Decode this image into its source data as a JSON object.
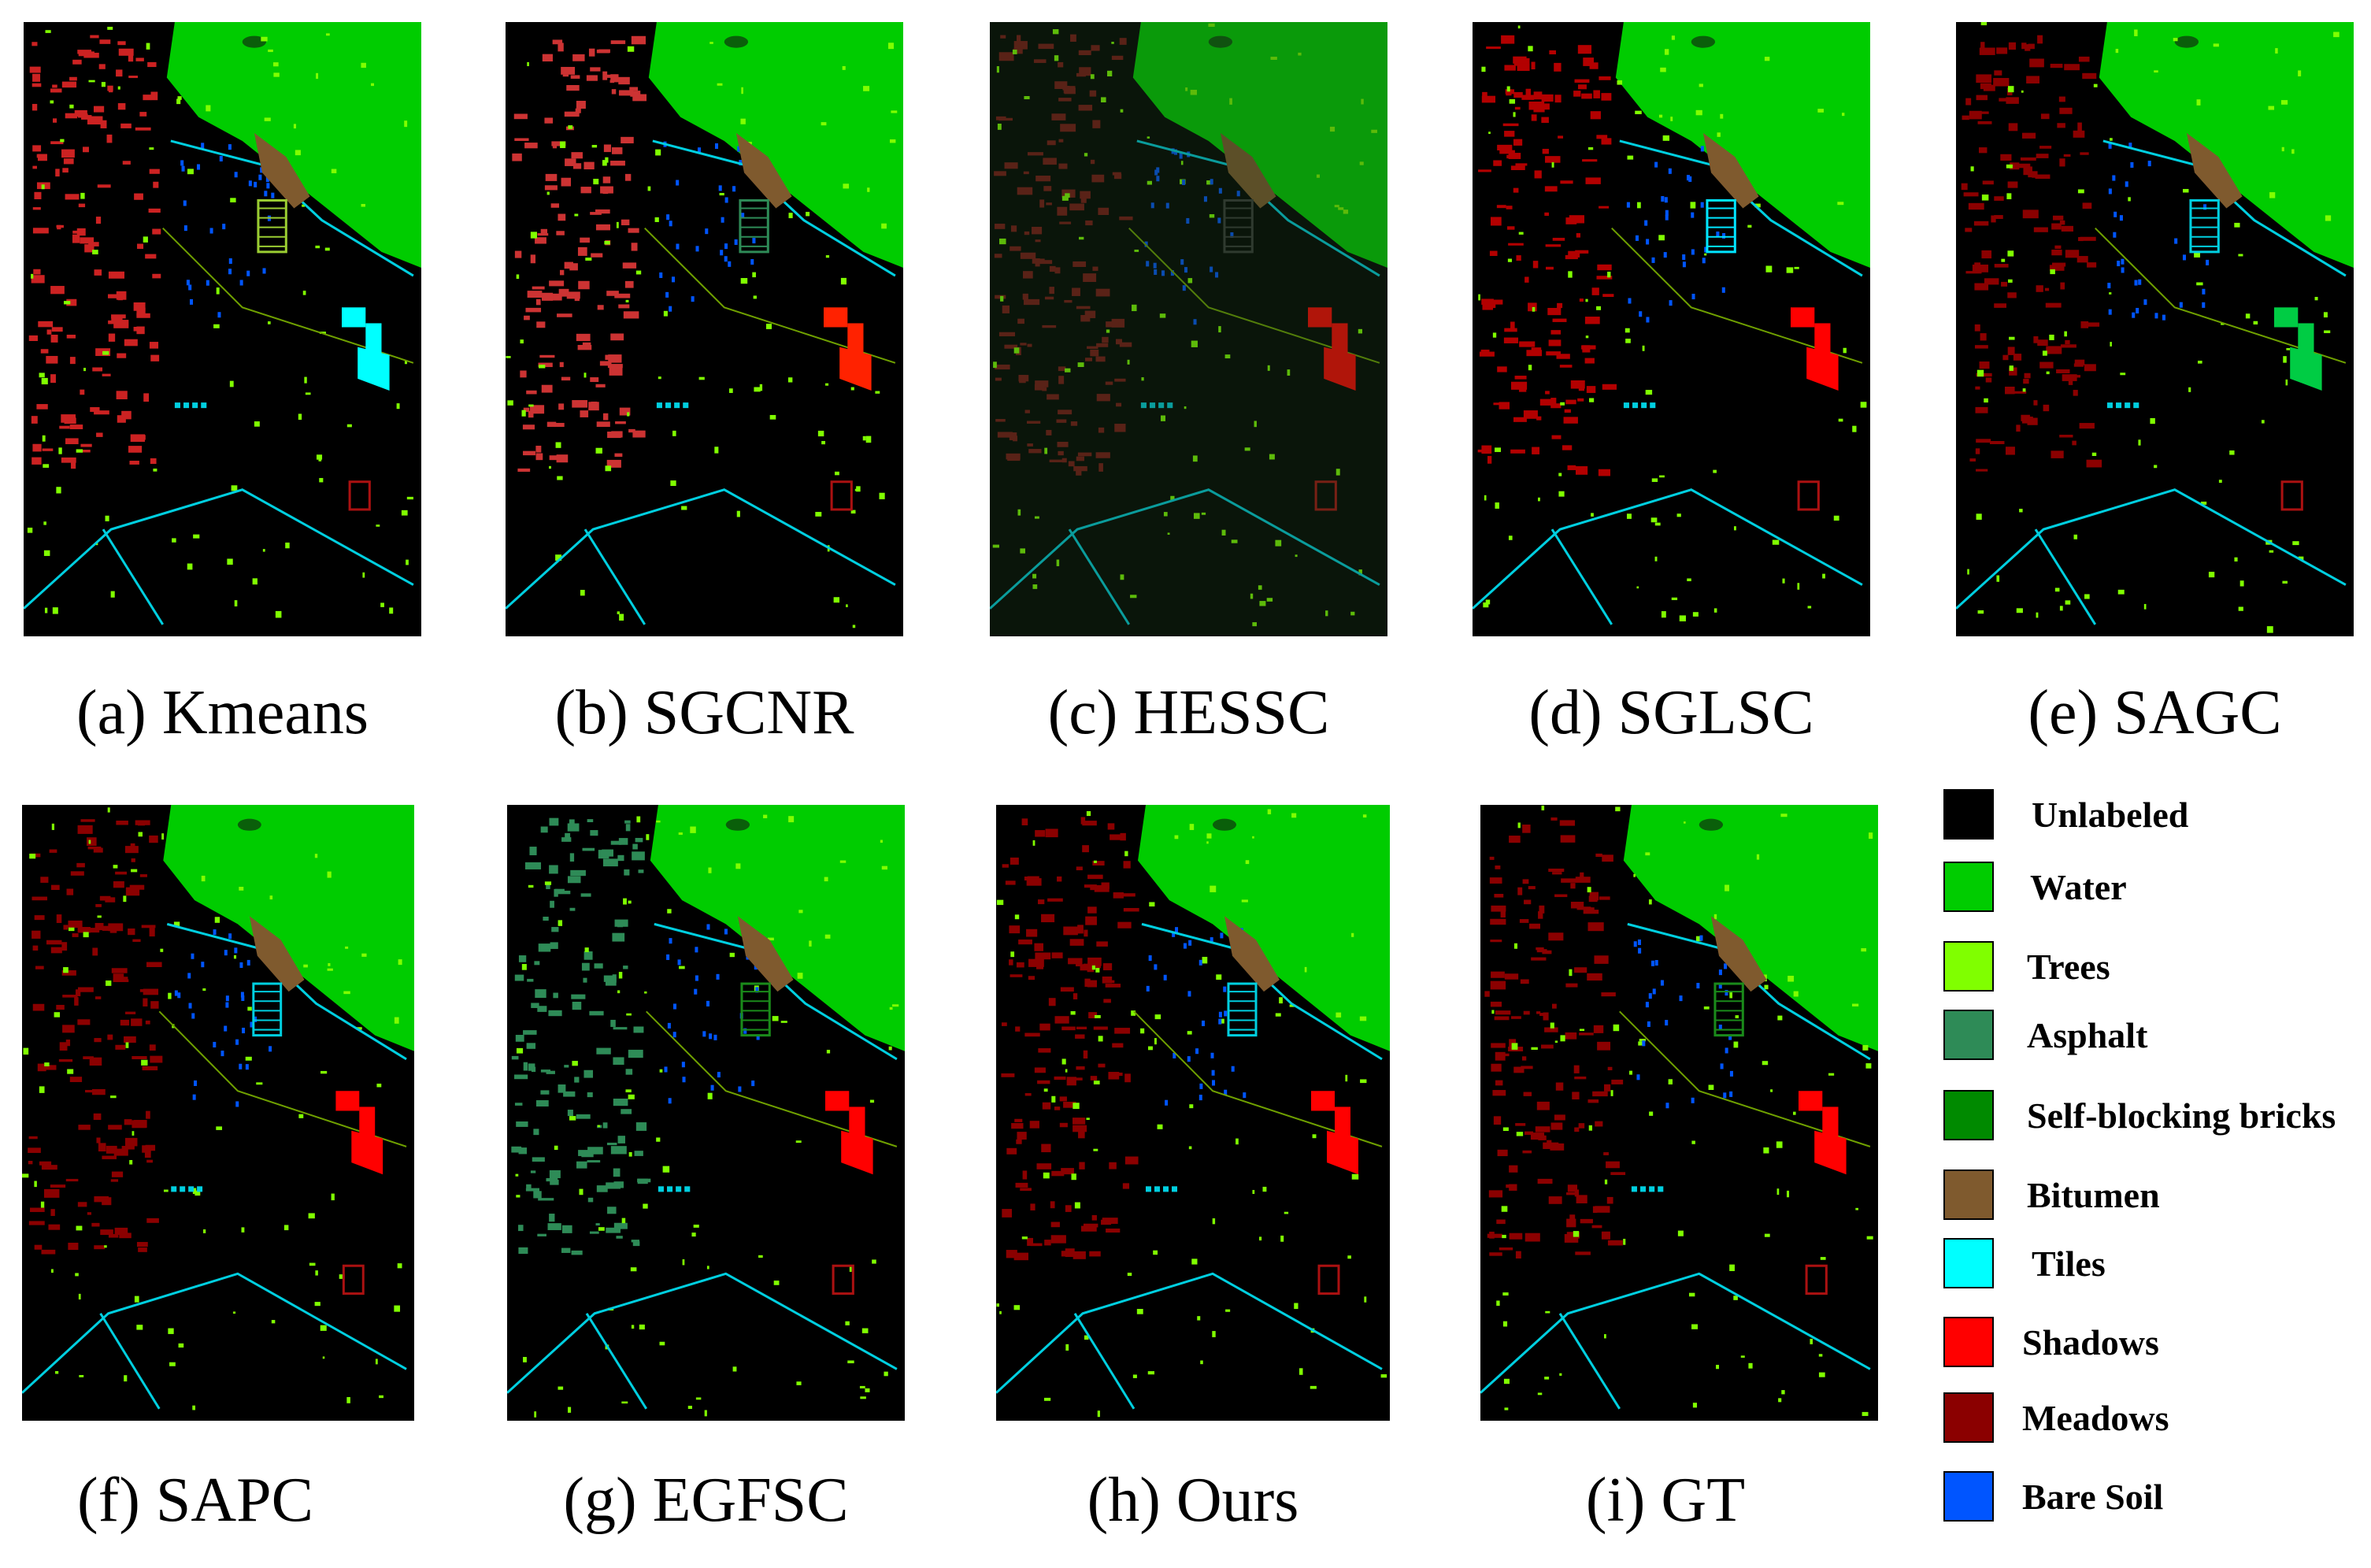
{
  "panels": [
    {
      "id": "a",
      "caption": "(a) Kmeans"
    },
    {
      "id": "b",
      "caption": "(b) SGCNR"
    },
    {
      "id": "c",
      "caption": "(c) HESSC"
    },
    {
      "id": "d",
      "caption": "(d) SGLSC"
    },
    {
      "id": "e",
      "caption": "(e) SAGC"
    },
    {
      "id": "f",
      "caption": "(f) SAPC"
    },
    {
      "id": "g",
      "caption": "(g) EGFSC"
    },
    {
      "id": "h",
      "caption": "(h) Ours"
    },
    {
      "id": "i",
      "caption": "(i) GT"
    }
  ],
  "legend": [
    {
      "label": "Unlabeled",
      "color": "#000000"
    },
    {
      "label": "Water",
      "color": "#00cc00"
    },
    {
      "label": "Trees",
      "color": "#80ff00"
    },
    {
      "label": "Asphalt",
      "color": "#2e8b57"
    },
    {
      "label": "Self-blocking bricks",
      "color": "#008a00"
    },
    {
      "label": "Bitumen",
      "color": "#7f5a2e"
    },
    {
      "label": "Tiles",
      "color": "#00ffff"
    },
    {
      "label": "Shadows",
      "color": "#ff0000"
    },
    {
      "label": "Meadows",
      "color": "#8b0000"
    },
    {
      "label": "Bare Soil",
      "color": "#0055ff"
    }
  ]
}
